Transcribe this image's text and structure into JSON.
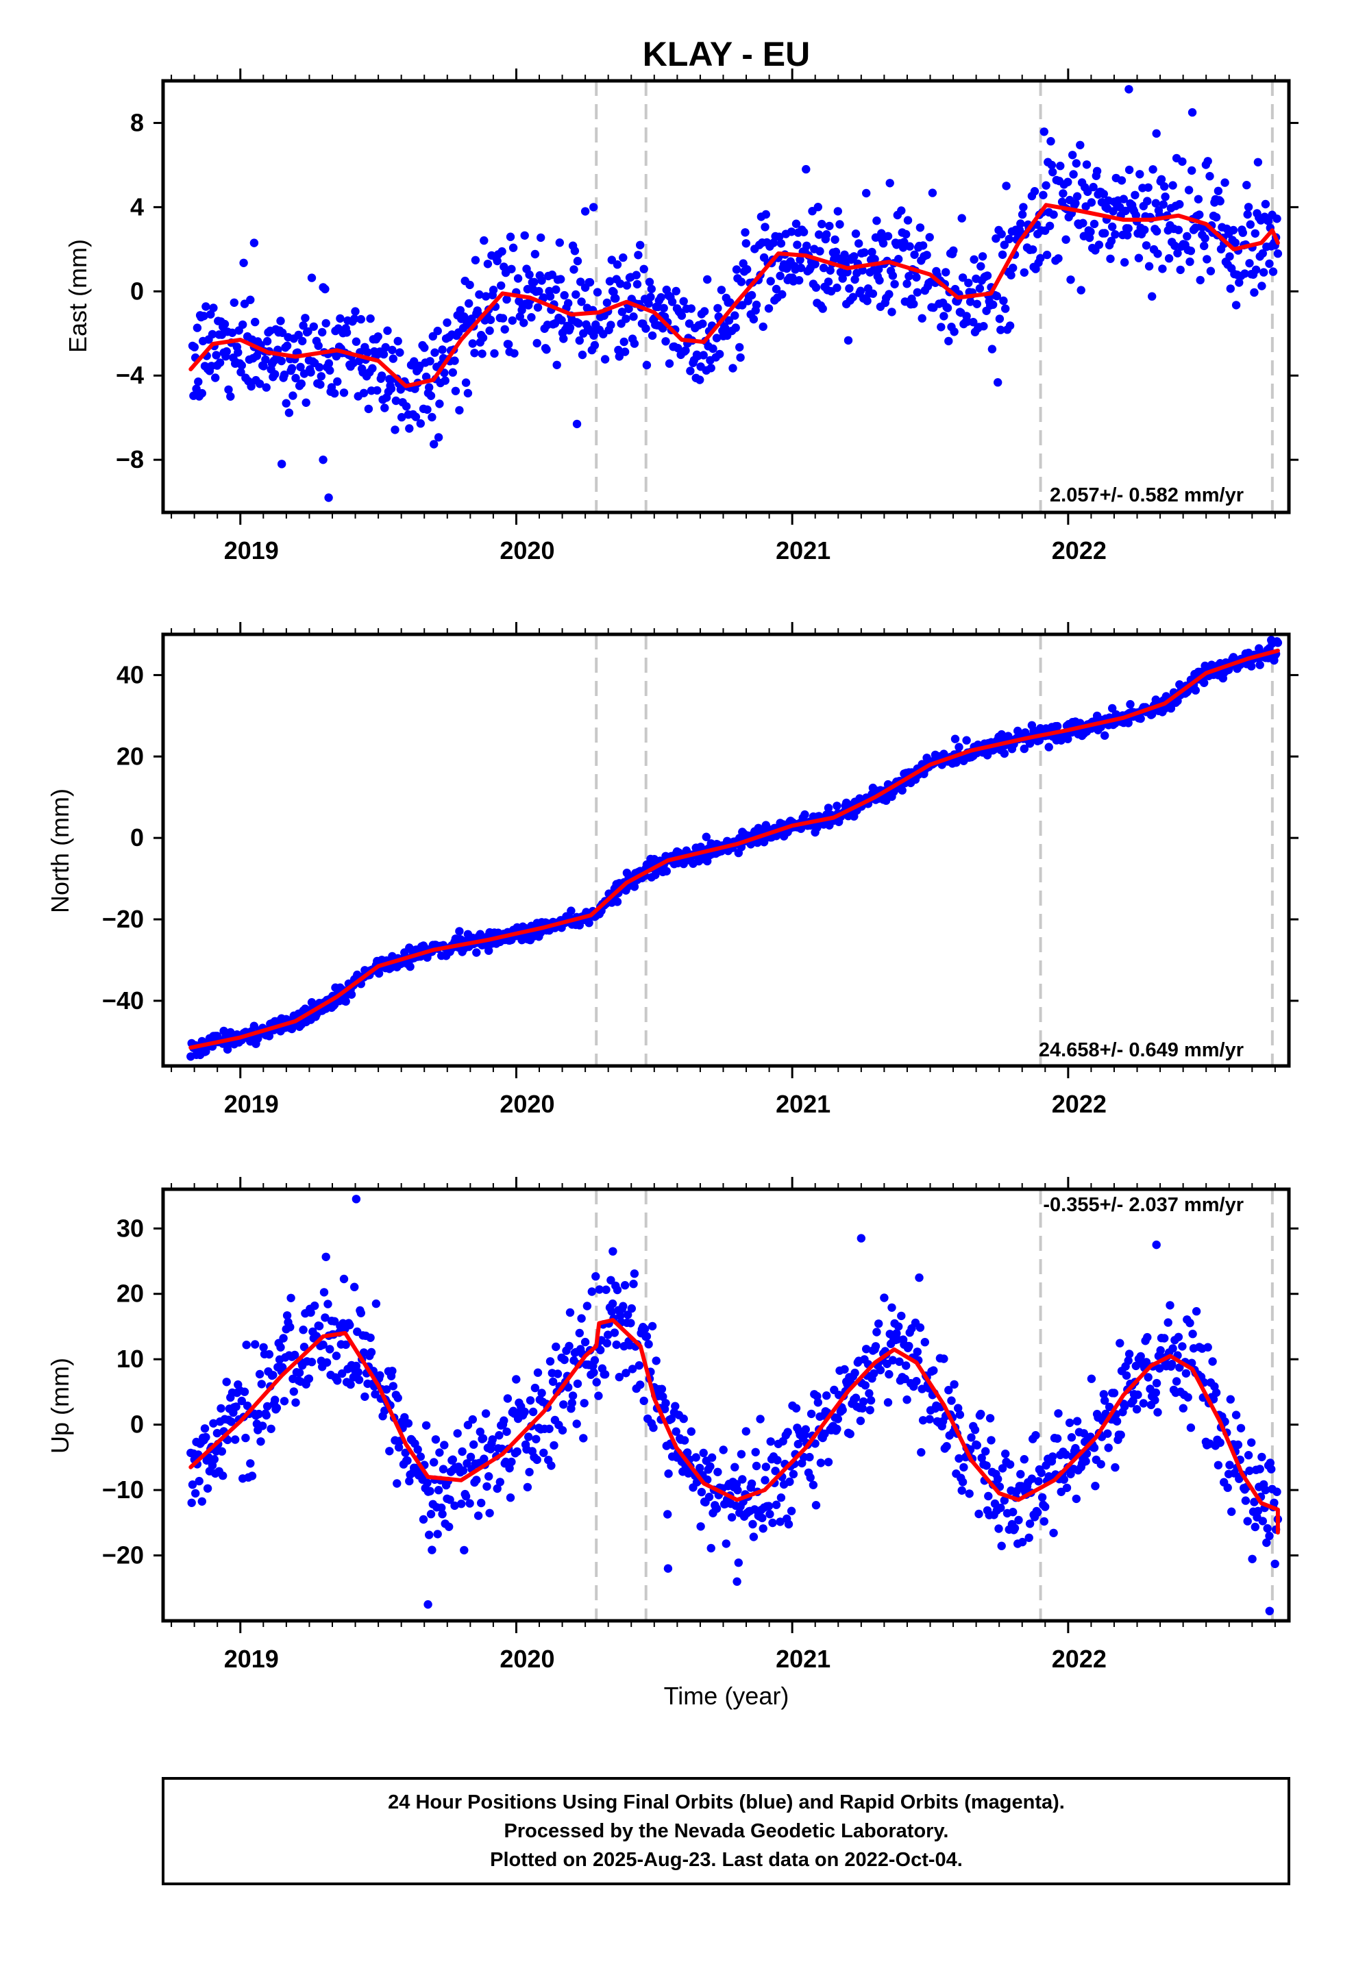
{
  "title": "KLAY - EU",
  "xlabel": "Time (year)",
  "x_tick_labels": [
    "2019",
    "2020",
    "2021",
    "2022"
  ],
  "footer": {
    "line1": "24 Hour Positions Using Final Orbits (blue) and Rapid Orbits (magenta).",
    "line2": "Processed by the Nevada Geodetic Laboratory.",
    "line3": "Plotted on 2025-Aug-23. Last data on 2022-Oct-04."
  },
  "colors": {
    "points": "#0000ff",
    "fit": "#ff0000",
    "event_lines": "#c8c8c8",
    "axes": "#000000"
  },
  "chart_data": [
    {
      "type": "scatter",
      "component": "east",
      "ylabel": "East (mm)",
      "rate_label": "2.057+/- 0.582 mm/yr",
      "xlim": [
        2018.72,
        2022.8
      ],
      "ylim": [
        -10.5,
        10
      ],
      "y_ticks": [
        -8,
        -4,
        0,
        4,
        8
      ],
      "event_lines": [
        2020.29,
        2020.47,
        2021.9,
        2022.74
      ],
      "data_start": 2018.82,
      "data_end": 2022.76,
      "fit": [
        [
          2018.82,
          -3.7
        ],
        [
          2018.9,
          -2.5
        ],
        [
          2019.0,
          -2.3
        ],
        [
          2019.1,
          -2.9
        ],
        [
          2019.2,
          -3.1
        ],
        [
          2019.35,
          -2.8
        ],
        [
          2019.5,
          -3.3
        ],
        [
          2019.6,
          -4.5
        ],
        [
          2019.7,
          -4.2
        ],
        [
          2019.8,
          -2.3
        ],
        [
          2019.95,
          -0.1
        ],
        [
          2020.05,
          -0.3
        ],
        [
          2020.2,
          -1.1
        ],
        [
          2020.3,
          -1.0
        ],
        [
          2020.4,
          -0.5
        ],
        [
          2020.5,
          -1.0
        ],
        [
          2020.6,
          -2.3
        ],
        [
          2020.68,
          -2.4
        ],
        [
          2020.8,
          -0.5
        ],
        [
          2020.95,
          1.8
        ],
        [
          2021.05,
          1.7
        ],
        [
          2021.2,
          1.1
        ],
        [
          2021.35,
          1.4
        ],
        [
          2021.5,
          0.8
        ],
        [
          2021.6,
          -0.3
        ],
        [
          2021.72,
          -0.1
        ],
        [
          2021.82,
          2.3
        ],
        [
          2021.92,
          4.1
        ],
        [
          2022.05,
          3.8
        ],
        [
          2022.2,
          3.4
        ],
        [
          2022.3,
          3.4
        ],
        [
          2022.4,
          3.6
        ],
        [
          2022.5,
          3.2
        ],
        [
          2022.6,
          2.0
        ],
        [
          2022.7,
          2.3
        ],
        [
          2022.74,
          2.9
        ],
        [
          2022.76,
          2.3
        ]
      ],
      "noise": 1.25,
      "outliers": [
        [
          2019.05,
          2.3
        ],
        [
          2019.15,
          -8.2
        ],
        [
          2019.3,
          -8.0
        ],
        [
          2019.32,
          -9.8
        ],
        [
          2020.25,
          3.8
        ],
        [
          2020.28,
          4.0
        ],
        [
          2020.22,
          -6.3
        ],
        [
          2021.05,
          5.8
        ],
        [
          2022.22,
          9.6
        ],
        [
          2022.45,
          8.5
        ],
        [
          2022.32,
          7.5
        ]
      ]
    },
    {
      "type": "scatter",
      "component": "north",
      "ylabel": "North (mm)",
      "rate_label": "24.658+/- 0.649 mm/yr",
      "xlim": [
        2018.72,
        2022.8
      ],
      "ylim": [
        -56,
        50
      ],
      "y_ticks": [
        -40,
        -20,
        0,
        20,
        40
      ],
      "event_lines": [
        2020.29,
        2020.47,
        2021.9,
        2022.74
      ],
      "data_start": 2018.82,
      "data_end": 2022.76,
      "fit": [
        [
          2018.82,
          -51.5
        ],
        [
          2019.0,
          -49.0
        ],
        [
          2019.2,
          -45.0
        ],
        [
          2019.35,
          -39.0
        ],
        [
          2019.5,
          -31.5
        ],
        [
          2019.7,
          -27.5
        ],
        [
          2019.9,
          -25.0
        ],
        [
          2020.1,
          -22.0
        ],
        [
          2020.27,
          -19.0
        ],
        [
          2020.4,
          -11.0
        ],
        [
          2020.55,
          -5.5
        ],
        [
          2020.8,
          -1.5
        ],
        [
          2021.0,
          3.0
        ],
        [
          2021.15,
          5.0
        ],
        [
          2021.3,
          10.0
        ],
        [
          2021.5,
          18.0
        ],
        [
          2021.65,
          21.5
        ],
        [
          2021.85,
          24.5
        ],
        [
          2022.0,
          26.5
        ],
        [
          2022.2,
          29.5
        ],
        [
          2022.35,
          33.0
        ],
        [
          2022.5,
          40.5
        ],
        [
          2022.65,
          44.0
        ],
        [
          2022.76,
          46.0
        ]
      ],
      "noise": 1.1,
      "outliers": []
    },
    {
      "type": "scatter",
      "component": "up",
      "ylabel": "Up (mm)",
      "rate_label": "-0.355+/- 2.037 mm/yr",
      "xlim": [
        2018.72,
        2022.8
      ],
      "ylim": [
        -30,
        36
      ],
      "y_ticks": [
        -20,
        -10,
        0,
        10,
        20,
        30
      ],
      "event_lines": [
        2020.29,
        2020.47,
        2021.9,
        2022.74
      ],
      "data_start": 2018.82,
      "data_end": 2022.76,
      "fit": [
        [
          2018.82,
          -6.5
        ],
        [
          2019.0,
          0.5
        ],
        [
          2019.15,
          7.5
        ],
        [
          2019.3,
          13.5
        ],
        [
          2019.38,
          14.0
        ],
        [
          2019.5,
          6.0
        ],
        [
          2019.6,
          -3.0
        ],
        [
          2019.68,
          -8.0
        ],
        [
          2019.8,
          -8.5
        ],
        [
          2019.95,
          -4.5
        ],
        [
          2020.1,
          2.0
        ],
        [
          2020.25,
          10.5
        ],
        [
          2020.29,
          12.0
        ],
        [
          2020.3,
          15.5
        ],
        [
          2020.35,
          16.0
        ],
        [
          2020.45,
          12.0
        ],
        [
          2020.5,
          4.0
        ],
        [
          2020.58,
          -3.5
        ],
        [
          2020.68,
          -9.0
        ],
        [
          2020.8,
          -11.5
        ],
        [
          2020.9,
          -10.0
        ],
        [
          2021.05,
          -3.5
        ],
        [
          2021.2,
          5.0
        ],
        [
          2021.3,
          9.5
        ],
        [
          2021.37,
          11.5
        ],
        [
          2021.45,
          9.5
        ],
        [
          2021.55,
          3.0
        ],
        [
          2021.65,
          -5.5
        ],
        [
          2021.75,
          -10.5
        ],
        [
          2021.82,
          -11.5
        ],
        [
          2021.95,
          -8.5
        ],
        [
          2022.1,
          -2.0
        ],
        [
          2022.2,
          4.5
        ],
        [
          2022.3,
          9.0
        ],
        [
          2022.37,
          10.5
        ],
        [
          2022.45,
          8.5
        ],
        [
          2022.55,
          0.5
        ],
        [
          2022.63,
          -7.5
        ],
        [
          2022.7,
          -12.0
        ],
        [
          2022.76,
          -13.0
        ],
        [
          2022.76,
          -16.5
        ]
      ],
      "noise": 4.2,
      "outliers": [
        [
          2019.42,
          34.5
        ],
        [
          2019.68,
          -27.5
        ],
        [
          2020.35,
          26.5
        ],
        [
          2020.55,
          -22.0
        ],
        [
          2021.25,
          28.5
        ],
        [
          2022.32,
          27.5
        ],
        [
          2022.73,
          -28.5
        ],
        [
          2020.8,
          -24.0
        ]
      ]
    }
  ]
}
